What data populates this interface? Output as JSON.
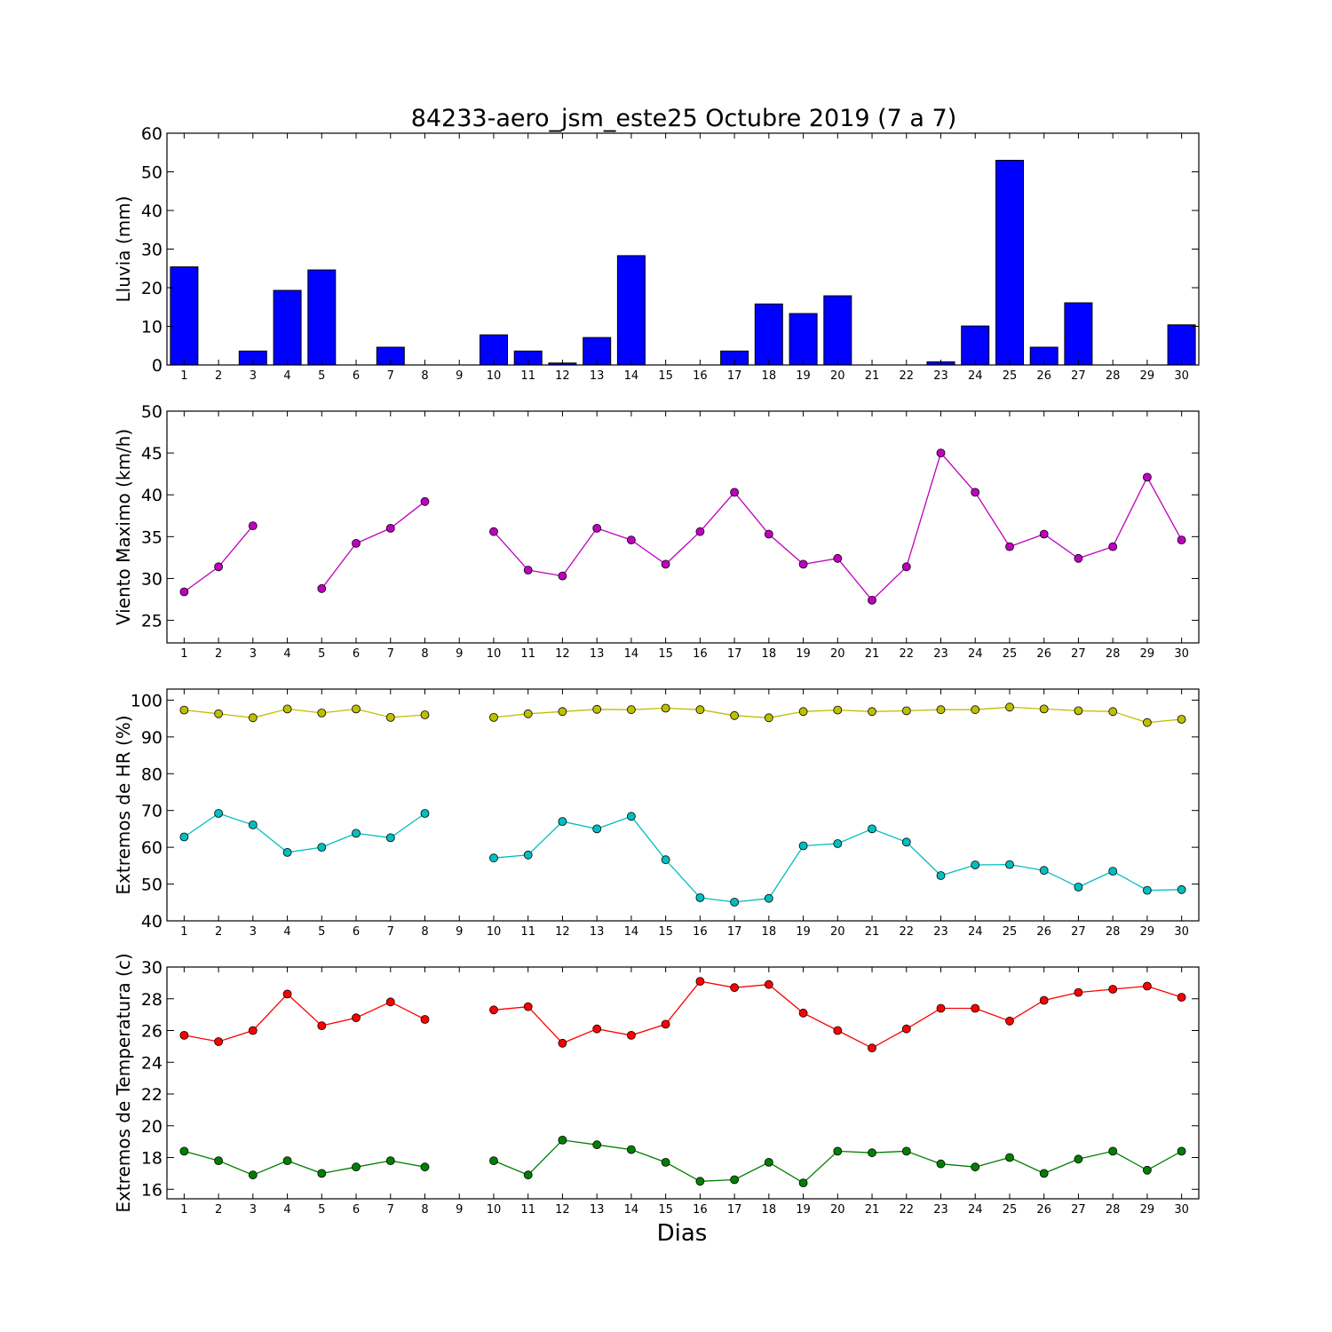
{
  "figure": {
    "title": "84233-aero_jsm_este25 Octubre 2019  (7 a 7)",
    "xlabel": "Dias"
  },
  "chart_data": [
    {
      "type": "bar",
      "ylabel": "Lluvia (mm)",
      "ylim": [
        0,
        60
      ],
      "yticks": [
        0,
        10,
        20,
        30,
        40,
        50,
        60
      ],
      "x": [
        1,
        2,
        3,
        4,
        5,
        6,
        7,
        8,
        9,
        10,
        11,
        12,
        13,
        14,
        15,
        16,
        17,
        18,
        19,
        20,
        21,
        22,
        23,
        24,
        25,
        26,
        27,
        28,
        29,
        30
      ],
      "series": [
        {
          "color": "#0000ff",
          "values": [
            25.4,
            0,
            3.6,
            19.3,
            24.6,
            0,
            4.6,
            0,
            0,
            7.8,
            3.6,
            0.5,
            7.1,
            28.3,
            0,
            0,
            3.6,
            15.8,
            13.3,
            17.9,
            0,
            0,
            0.8,
            10.1,
            53.0,
            4.6,
            16.1,
            0,
            0,
            10.4
          ]
        }
      ]
    },
    {
      "type": "line",
      "ylabel": "Viento Maximo (km/h)",
      "ylim": [
        22.3,
        50
      ],
      "yticks": [
        25,
        30,
        35,
        40,
        45,
        50
      ],
      "x": [
        1,
        2,
        3,
        4,
        5,
        6,
        7,
        8,
        9,
        10,
        11,
        12,
        13,
        14,
        15,
        16,
        17,
        18,
        19,
        20,
        21,
        22,
        23,
        24,
        25,
        26,
        27,
        28,
        29,
        30
      ],
      "series": [
        {
          "color": "#bf00bf",
          "values": [
            28.4,
            31.4,
            36.3,
            null,
            28.8,
            34.2,
            36.0,
            39.2,
            null,
            35.6,
            31.0,
            30.3,
            36.0,
            34.6,
            31.7,
            35.6,
            40.3,
            35.3,
            31.7,
            32.4,
            27.4,
            31.4,
            45.0,
            40.3,
            33.8,
            35.3,
            32.4,
            33.8,
            42.1,
            34.6
          ]
        }
      ]
    },
    {
      "type": "line",
      "ylabel": "Extremos de HR (%)",
      "ylim": [
        40,
        103
      ],
      "yticks": [
        40,
        50,
        60,
        70,
        80,
        90,
        100
      ],
      "x": [
        1,
        2,
        3,
        4,
        5,
        6,
        7,
        8,
        9,
        10,
        11,
        12,
        13,
        14,
        15,
        16,
        17,
        18,
        19,
        20,
        21,
        22,
        23,
        24,
        25,
        26,
        27,
        28,
        29,
        30
      ],
      "series": [
        {
          "color": "#bfbf00",
          "values": [
            97.3,
            96.3,
            95.2,
            97.6,
            96.5,
            97.6,
            95.3,
            96.0,
            null,
            95.3,
            96.3,
            96.9,
            97.5,
            97.4,
            97.8,
            97.4,
            95.8,
            95.2,
            96.9,
            97.3,
            96.9,
            97.1,
            97.4,
            97.4,
            98.1,
            97.6,
            97.1,
            96.9,
            93.9,
            94.8
          ]
        },
        {
          "color": "#00bfbf",
          "values": [
            62.8,
            69.2,
            66.1,
            58.6,
            60.0,
            63.8,
            62.6,
            69.2,
            null,
            57.1,
            57.9,
            67.0,
            65.0,
            68.4,
            56.6,
            46.3,
            45.1,
            46.1,
            60.4,
            61.0,
            65.0,
            61.4,
            52.3,
            55.2,
            55.3,
            53.7,
            49.2,
            53.5,
            48.3,
            48.5
          ]
        }
      ]
    },
    {
      "type": "line",
      "ylabel": "Extremos de Temperatura (c)",
      "ylim": [
        15.4,
        30
      ],
      "yticks": [
        16,
        18,
        20,
        22,
        24,
        26,
        28,
        30
      ],
      "x": [
        1,
        2,
        3,
        4,
        5,
        6,
        7,
        8,
        9,
        10,
        11,
        12,
        13,
        14,
        15,
        16,
        17,
        18,
        19,
        20,
        21,
        22,
        23,
        24,
        25,
        26,
        27,
        28,
        29,
        30
      ],
      "series": [
        {
          "color": "#ff0000",
          "values": [
            25.7,
            25.3,
            26.0,
            28.3,
            26.3,
            26.8,
            27.8,
            26.7,
            null,
            27.3,
            27.5,
            25.2,
            26.1,
            25.7,
            26.4,
            29.1,
            28.7,
            28.9,
            27.1,
            26.0,
            24.9,
            26.1,
            27.4,
            27.4,
            26.6,
            27.9,
            28.4,
            28.6,
            28.8,
            28.1
          ]
        },
        {
          "color": "#008000",
          "values": [
            18.4,
            17.8,
            16.9,
            17.8,
            17.0,
            17.4,
            17.8,
            17.4,
            null,
            17.8,
            16.9,
            19.1,
            18.8,
            18.5,
            17.7,
            16.5,
            16.6,
            17.7,
            16.4,
            18.4,
            18.3,
            18.4,
            17.6,
            17.4,
            18.0,
            17.0,
            17.9,
            18.4,
            17.2,
            18.4
          ]
        }
      ]
    }
  ]
}
